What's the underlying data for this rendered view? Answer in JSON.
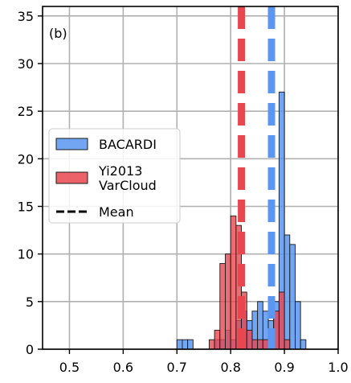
{
  "chart_data": {
    "type": "bar",
    "panel_label": "(b)",
    "xlim": [
      0.45,
      1.0
    ],
    "ylim": [
      0,
      36
    ],
    "xticks": [
      0.5,
      0.6,
      0.7,
      0.8,
      0.9,
      1.0
    ],
    "xtick_labels": [
      "0.5",
      "0.6",
      "0.7",
      "0.8",
      "0.9",
      "1.0"
    ],
    "yticks": [
      0,
      5,
      10,
      15,
      20,
      25,
      30,
      35
    ],
    "ytick_labels": [
      "0",
      "5",
      "10",
      "15",
      "20",
      "25",
      "30",
      "35"
    ],
    "grid": true,
    "legend_position": "center-left",
    "bin_width": 0.01,
    "series": [
      {
        "name": "BACARDI",
        "color": "#5b96f0",
        "mean": 0.876,
        "bins": [
          {
            "x": 0.69,
            "count": 0
          },
          {
            "x": 0.7,
            "count": 1
          },
          {
            "x": 0.71,
            "count": 1
          },
          {
            "x": 0.72,
            "count": 1
          },
          {
            "x": 0.73,
            "count": 0
          },
          {
            "x": 0.74,
            "count": 0
          },
          {
            "x": 0.75,
            "count": 0
          },
          {
            "x": 0.76,
            "count": 0
          },
          {
            "x": 0.77,
            "count": 1
          },
          {
            "x": 0.78,
            "count": 1
          },
          {
            "x": 0.79,
            "count": 2
          },
          {
            "x": 0.8,
            "count": 1
          },
          {
            "x": 0.81,
            "count": 3
          },
          {
            "x": 0.82,
            "count": 4
          },
          {
            "x": 0.83,
            "count": 3
          },
          {
            "x": 0.84,
            "count": 4
          },
          {
            "x": 0.85,
            "count": 5
          },
          {
            "x": 0.86,
            "count": 4
          },
          {
            "x": 0.87,
            "count": 3
          },
          {
            "x": 0.88,
            "count": 5
          },
          {
            "x": 0.89,
            "count": 27
          },
          {
            "x": 0.9,
            "count": 12
          },
          {
            "x": 0.91,
            "count": 11
          },
          {
            "x": 0.92,
            "count": 5
          },
          {
            "x": 0.93,
            "count": 1
          }
        ]
      },
      {
        "name": "Yi2013\nVarCloud",
        "color": "#e8474f",
        "mean": 0.82,
        "bins": [
          {
            "x": 0.75,
            "count": 0
          },
          {
            "x": 0.76,
            "count": 1
          },
          {
            "x": 0.77,
            "count": 2
          },
          {
            "x": 0.78,
            "count": 9
          },
          {
            "x": 0.79,
            "count": 10
          },
          {
            "x": 0.8,
            "count": 14
          },
          {
            "x": 0.81,
            "count": 13
          },
          {
            "x": 0.82,
            "count": 6
          },
          {
            "x": 0.83,
            "count": 2
          },
          {
            "x": 0.84,
            "count": 1
          },
          {
            "x": 0.85,
            "count": 1
          },
          {
            "x": 0.86,
            "count": 1
          },
          {
            "x": 0.87,
            "count": 1
          },
          {
            "x": 0.88,
            "count": 4
          },
          {
            "x": 0.89,
            "count": 6
          },
          {
            "x": 0.9,
            "count": 1
          }
        ]
      }
    ],
    "legend": [
      {
        "label": "BACARDI",
        "kind": "patch",
        "color": "#5b96f0"
      },
      {
        "label": "Yi2013\nVarCloud",
        "kind": "patch",
        "color": "#e8474f"
      },
      {
        "label": "Mean",
        "kind": "dashed-line",
        "color": "#000000"
      }
    ]
  }
}
